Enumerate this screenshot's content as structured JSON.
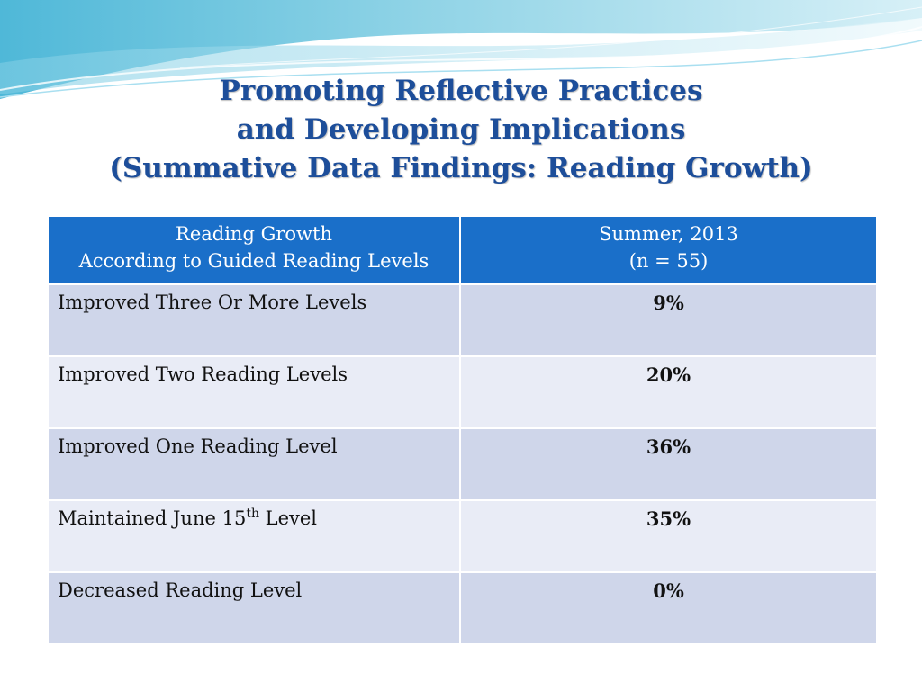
{
  "title": {
    "line1": "Promoting Reflective Practices",
    "line2": "and Developing Implications",
    "line3": "(Summative Data Findings: Reading Growth)"
  },
  "table": {
    "header": {
      "col1_line1": "Reading Growth",
      "col1_line2": "According to Guided Reading Levels",
      "col2_line1": "Summer, 2013",
      "col2_line2": "(n = 55)"
    },
    "rows": [
      {
        "label": "Improved Three Or More Levels",
        "value": "9%"
      },
      {
        "label": "Improved Two Reading Levels",
        "value": "20%"
      },
      {
        "label": "Improved One Reading Level",
        "value": "36%"
      },
      {
        "label_pre": "Maintained June 15",
        "label_sup": "th",
        "label_post": " Level",
        "value": "35%"
      },
      {
        "label": "Decreased Reading Level",
        "value": "0%"
      }
    ]
  },
  "colors": {
    "title": "#1d4e9a",
    "header_bg": "#1a6fc9",
    "row_dark": "#cfd6ea",
    "row_light": "#e9ecf6"
  }
}
